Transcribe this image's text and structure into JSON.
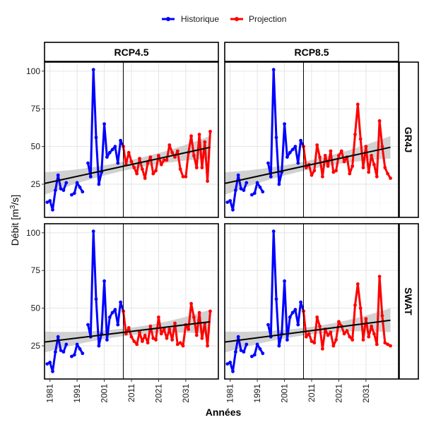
{
  "legend": {
    "items": [
      {
        "label": "Historique",
        "color": "#0000FF"
      },
      {
        "label": "Projection",
        "color": "#FF0000"
      }
    ],
    "placement": "top"
  },
  "chart_data": {
    "type": "line",
    "xlabel": "Années",
    "ylabel_text": "Débit [m",
    "ylabel_sup": "3",
    "ylabel_end": "/s]",
    "xlim": [
      1979,
      2043
    ],
    "ylim": [
      3,
      106
    ],
    "x_ticks": [
      1981,
      1991,
      2001,
      2011,
      2021,
      2031
    ],
    "y_ticks": [
      25,
      50,
      75,
      100
    ],
    "vline_x": 2008,
    "column_labels": [
      "RCP4.5",
      "RCP8.5"
    ],
    "row_labels": [
      "GR4J",
      "SWAT"
    ],
    "grid": true,
    "colors": {
      "historique": "#0000FF",
      "projection": "#FF0000",
      "trend": "#000000",
      "band": "#BEBEBE"
    },
    "historique": {
      "GR4J": {
        "x": [
          1980,
          1981,
          1982,
          1983,
          1984,
          1985,
          1986,
          1987,
          1988,
          1989,
          1990,
          1991,
          1992,
          1993,
          1994,
          1995,
          1996,
          1997,
          1998,
          1999,
          2000,
          2001,
          2002,
          2003,
          2004,
          2005,
          2006,
          2007,
          2008
        ],
        "y": [
          13,
          14,
          8,
          21,
          31,
          22,
          21,
          26,
          null,
          18,
          19,
          26,
          23,
          20,
          null,
          39,
          30,
          101,
          56,
          25,
          33,
          65,
          43,
          46,
          48,
          50,
          39,
          54,
          50
        ]
      },
      "SWAT": {
        "x": [
          1980,
          1981,
          1982,
          1983,
          1984,
          1985,
          1986,
          1987,
          1988,
          1989,
          1990,
          1991,
          1992,
          1993,
          1994,
          1995,
          1996,
          1997,
          1998,
          1999,
          2000,
          2001,
          2002,
          2003,
          2004,
          2005,
          2006,
          2007,
          2008
        ],
        "y": [
          13,
          14,
          8,
          21,
          31,
          22,
          21,
          26,
          null,
          18,
          19,
          26,
          23,
          20,
          null,
          39,
          31,
          101,
          56,
          25,
          33,
          68,
          29,
          44,
          47,
          49,
          39,
          54,
          48
        ]
      }
    },
    "panels": [
      {
        "column": "RCP4.5",
        "row": "GR4J",
        "projection": {
          "x": [
            2008,
            2009,
            2010,
            2011,
            2012,
            2013,
            2014,
            2015,
            2016,
            2017,
            2018,
            2019,
            2020,
            2021,
            2022,
            2023,
            2024,
            2025,
            2026,
            2027,
            2028,
            2029,
            2030,
            2031,
            2032,
            2033,
            2034,
            2035,
            2036,
            2037,
            2038,
            2039,
            2040
          ],
          "y": [
            50,
            38,
            46,
            40,
            36,
            32,
            42,
            35,
            29,
            39,
            43,
            32,
            34,
            44,
            38,
            41,
            41,
            51,
            46,
            43,
            47,
            35,
            30,
            30,
            46,
            57,
            44,
            36,
            58,
            36,
            53,
            27,
            60
          ]
        },
        "trend": {
          "x": [
            1979,
            2040
          ],
          "y": [
            25.5,
            49.5
          ],
          "band_halfwidth": [
            7.5,
            7.5
          ],
          "band_mid_halfwidth": 3
        }
      },
      {
        "column": "RCP8.5",
        "row": "GR4J",
        "projection": {
          "x": [
            2008,
            2009,
            2010,
            2011,
            2012,
            2013,
            2014,
            2015,
            2016,
            2017,
            2018,
            2019,
            2020,
            2021,
            2022,
            2023,
            2024,
            2025,
            2026,
            2027,
            2028,
            2029,
            2030,
            2031,
            2032,
            2033,
            2034,
            2035,
            2036,
            2037,
            2038,
            2039,
            2040
          ],
          "y": [
            50,
            36,
            38,
            31,
            34,
            51,
            43,
            30,
            44,
            37,
            47,
            33,
            34,
            44,
            47,
            40,
            43,
            32,
            37,
            58,
            78,
            55,
            36,
            50,
            33,
            44,
            38,
            30,
            67,
            50,
            36,
            32,
            29
          ]
        },
        "trend": {
          "x": [
            1979,
            2040
          ],
          "y": [
            25.5,
            49.5
          ],
          "band_halfwidth": [
            7.5,
            7.5
          ],
          "band_mid_halfwidth": 3
        }
      },
      {
        "column": "RCP4.5",
        "row": "SWAT",
        "projection": {
          "x": [
            2008,
            2009,
            2010,
            2011,
            2012,
            2013,
            2014,
            2015,
            2016,
            2017,
            2018,
            2019,
            2020,
            2021,
            2022,
            2023,
            2024,
            2025,
            2026,
            2027,
            2028,
            2029,
            2030,
            2031,
            2032,
            2033,
            2034,
            2035,
            2036,
            2037,
            2038,
            2039,
            2040
          ],
          "y": [
            48,
            33,
            37,
            31,
            28,
            26,
            34,
            28,
            32,
            27,
            38,
            30,
            29,
            44,
            33,
            36,
            30,
            36,
            29,
            40,
            26,
            27,
            25,
            39,
            36,
            53,
            44,
            32,
            47,
            30,
            40,
            25,
            48
          ]
        },
        "trend": {
          "x": [
            1979,
            2040
          ],
          "y": [
            27.5,
            41
          ],
          "band_halfwidth": [
            7,
            8
          ],
          "band_mid_halfwidth": 2.5
        }
      },
      {
        "column": "RCP8.5",
        "row": "SWAT",
        "projection": {
          "x": [
            2008,
            2009,
            2010,
            2011,
            2012,
            2013,
            2014,
            2015,
            2016,
            2017,
            2018,
            2019,
            2020,
            2021,
            2022,
            2023,
            2024,
            2025,
            2026,
            2027,
            2028,
            2029,
            2030,
            2031,
            2032,
            2033,
            2034,
            2035,
            2036,
            2037,
            2038,
            2039,
            2040
          ],
          "y": [
            48,
            31,
            33,
            28,
            27,
            44,
            38,
            23,
            36,
            32,
            34,
            25,
            29,
            41,
            38,
            33,
            35,
            31,
            29,
            52,
            66,
            50,
            29,
            43,
            31,
            38,
            33,
            26,
            71,
            45,
            27,
            26,
            25
          ]
        },
        "trend": {
          "x": [
            1979,
            2040
          ],
          "y": [
            27.5,
            42
          ],
          "band_halfwidth": [
            7,
            8
          ],
          "band_mid_halfwidth": 2.5
        }
      }
    ]
  }
}
